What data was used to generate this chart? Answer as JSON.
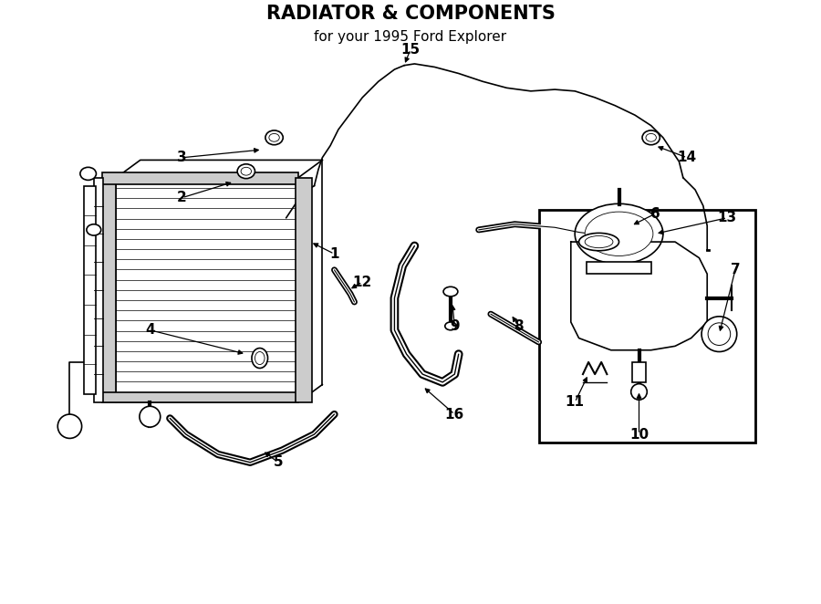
{
  "title": "RADIATOR & COMPONENTS",
  "subtitle": "for your 1995 Ford Explorer",
  "bg_color": "#ffffff",
  "line_color": "#000000",
  "figsize": [
    9.0,
    6.62
  ],
  "dpi": 100
}
